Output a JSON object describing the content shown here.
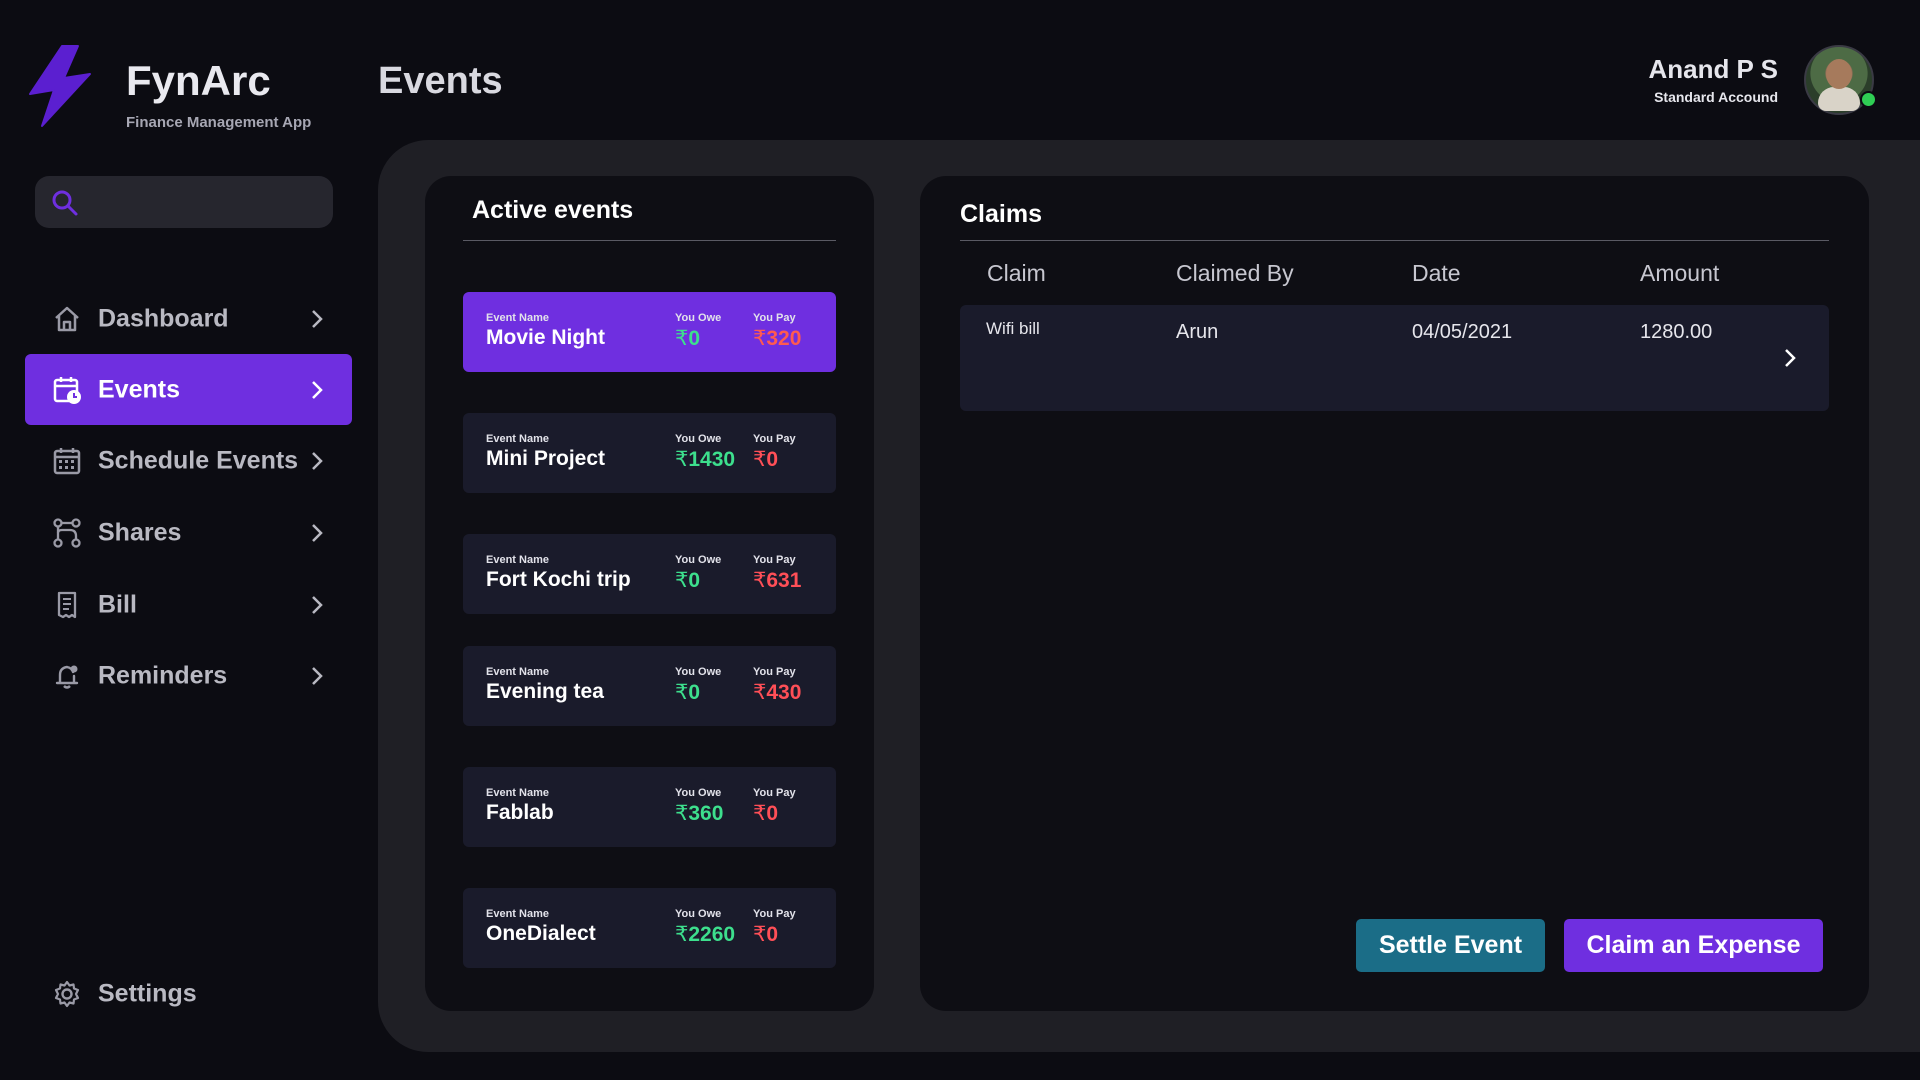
{
  "app": {
    "name": "FynArc",
    "subtitle": "Finance Management App",
    "accent": "#6f2fe0"
  },
  "header": {
    "title": "Events"
  },
  "user": {
    "name": "Anand P S",
    "role": "Standard Accound",
    "status_color": "#2fce54"
  },
  "search": {
    "placeholder": ""
  },
  "sidebar": {
    "items": [
      {
        "label": "Dashboard",
        "icon": "home-icon",
        "active": false
      },
      {
        "label": "Events",
        "icon": "calendar-clock-icon",
        "active": true
      },
      {
        "label": "Schedule Events",
        "icon": "calendar-grid-icon",
        "active": false
      },
      {
        "label": "Shares",
        "icon": "branch-icon",
        "active": false
      },
      {
        "label": "Bill",
        "icon": "receipt-icon",
        "active": false
      },
      {
        "label": "Reminders",
        "icon": "bell-icon",
        "active": false
      }
    ],
    "settings_label": "Settings"
  },
  "events": {
    "heading": "Active events",
    "name_label": "Event Name",
    "owe_label": "You Owe",
    "pay_label": "You Pay",
    "currency": "₹",
    "items": [
      {
        "name": "Movie Night",
        "owe": "0",
        "pay": "320",
        "active": true
      },
      {
        "name": "Mini Project",
        "owe": "1430",
        "pay": "0",
        "active": false
      },
      {
        "name": "Fort Kochi trip",
        "owe": "0",
        "pay": "631",
        "active": false
      },
      {
        "name": "Evening tea",
        "owe": "0",
        "pay": "430",
        "active": false
      },
      {
        "name": "Fablab",
        "owe": "360",
        "pay": "0",
        "active": false
      },
      {
        "name": "OneDialect",
        "owe": "2260",
        "pay": "0",
        "active": false
      }
    ]
  },
  "claims": {
    "heading": "Claims",
    "columns": [
      "Claim",
      "Claimed By",
      "Date",
      "Amount"
    ],
    "rows": [
      {
        "claim": "Wifi bill",
        "claimed_by": "Arun",
        "date": "04/05/2021",
        "amount": "1280.00"
      }
    ]
  },
  "buttons": {
    "settle": "Settle Event",
    "claim": "Claim an Expense"
  }
}
